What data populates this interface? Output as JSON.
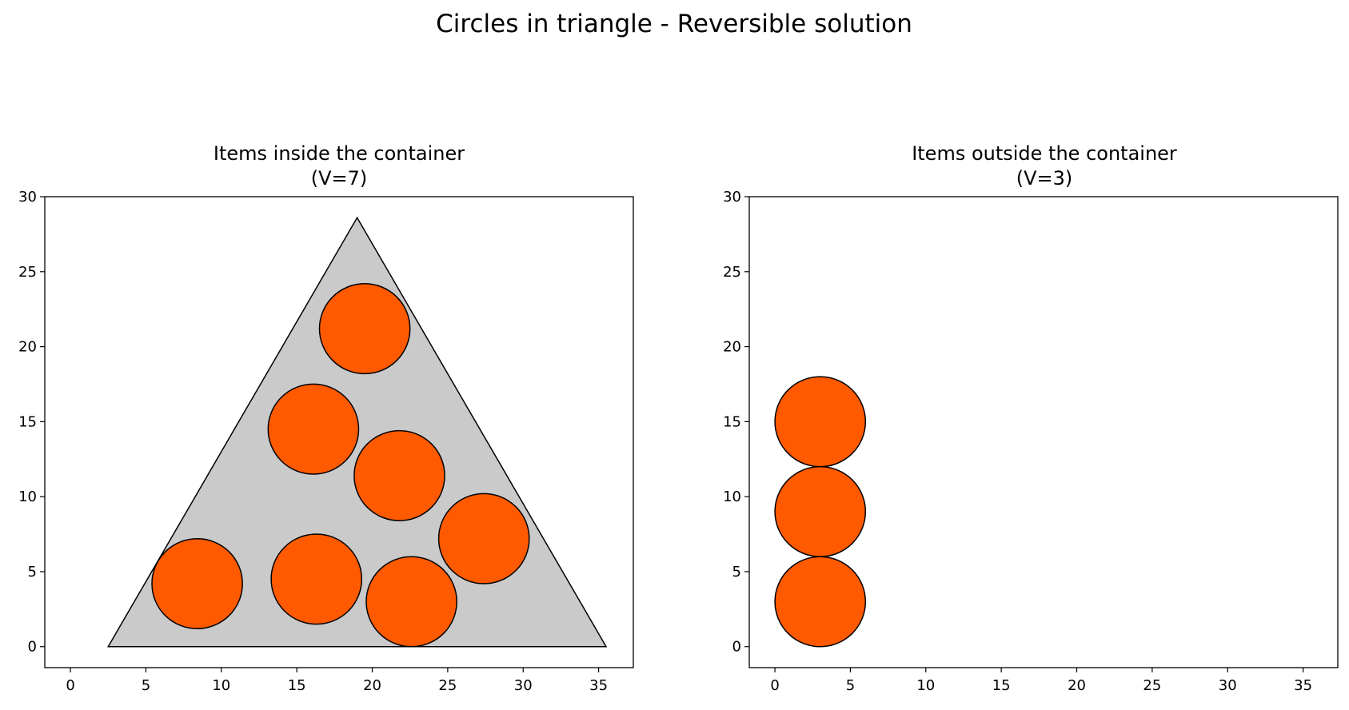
{
  "figure": {
    "title": "Circles in triangle - Reversible solution",
    "colors": {
      "background": "#ffffff",
      "container_fill": "#cacaca",
      "item_fill": "#ff5a00",
      "stroke": "#000000"
    }
  },
  "chart_data": [
    {
      "type": "scatter",
      "title_line1": "Items inside the container",
      "title_line2": "(V=7)",
      "xlim": [
        -1.7,
        37.3
      ],
      "ylim": [
        -1.4,
        30
      ],
      "xticks": [
        0,
        5,
        10,
        15,
        20,
        25,
        30,
        35
      ],
      "yticks": [
        0,
        5,
        10,
        15,
        20,
        25,
        30
      ],
      "grid": false,
      "container": {
        "shape": "triangle",
        "vertices": [
          [
            2.5,
            0
          ],
          [
            35.5,
            0
          ],
          [
            19,
            28.6
          ]
        ]
      },
      "items": [
        {
          "x": 19.5,
          "y": 21.2,
          "r": 3
        },
        {
          "x": 16.1,
          "y": 14.5,
          "r": 3
        },
        {
          "x": 21.8,
          "y": 11.4,
          "r": 3
        },
        {
          "x": 27.4,
          "y": 7.2,
          "r": 3
        },
        {
          "x": 8.4,
          "y": 4.2,
          "r": 3
        },
        {
          "x": 16.3,
          "y": 4.5,
          "r": 3
        },
        {
          "x": 22.6,
          "y": 3.0,
          "r": 3
        }
      ]
    },
    {
      "type": "scatter",
      "title_line1": "Items outside the container",
      "title_line2": "(V=3)",
      "xlim": [
        -1.7,
        37.3
      ],
      "ylim": [
        -1.4,
        30
      ],
      "xticks": [
        0,
        5,
        10,
        15,
        20,
        25,
        30,
        35
      ],
      "yticks": [
        0,
        5,
        10,
        15,
        20,
        25,
        30
      ],
      "grid": false,
      "container": null,
      "items": [
        {
          "x": 3.0,
          "y": 15.0,
          "r": 3
        },
        {
          "x": 3.0,
          "y": 9.0,
          "r": 3
        },
        {
          "x": 3.0,
          "y": 3.0,
          "r": 3
        }
      ]
    }
  ]
}
